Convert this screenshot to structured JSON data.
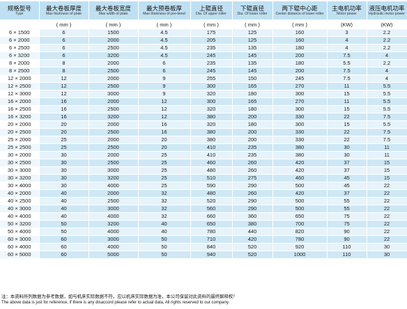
{
  "header": {
    "columns": [
      {
        "zh": "规格型号",
        "en": "Type"
      },
      {
        "zh": "最大卷板厚度",
        "en": "Max thickness of plate"
      },
      {
        "zh": "最大卷板宽度",
        "en": "Max width of plate"
      },
      {
        "zh": "最大预卷板厚",
        "en": "Max thickness of pre-bend"
      },
      {
        "zh": "上辊直径",
        "en": "Dia. Of upper roller"
      },
      {
        "zh": "下辊直径",
        "en": "Dia. Of lower roller"
      },
      {
        "zh": "两下辊中心距",
        "en": "Center distance of lower roller"
      },
      {
        "zh": "主电机功率",
        "en": "Motor power"
      },
      {
        "zh": "液压电机功率",
        "en": "Hydraulic motor power"
      }
    ],
    "units": [
      "",
      "( mm )",
      "( mm )",
      "( mm )",
      "( mm )",
      "( mm )",
      "( mm )",
      "(KW)",
      "(KW)"
    ]
  },
  "rows": [
    [
      "6 × 1500",
      "6",
      "1500",
      "4.5",
      "175",
      "125",
      "160",
      "3",
      "2.2"
    ],
    [
      "6 × 2000",
      "6",
      "2000",
      "4.5",
      "205",
      "125",
      "160",
      "4",
      "2.2"
    ],
    [
      "6 × 2500",
      "6",
      "2500",
      "4.5",
      "235",
      "135",
      "180",
      "4",
      "2.2"
    ],
    [
      "6 × 3200",
      "6",
      "3200",
      "4.5",
      "245",
      "145",
      "200",
      "7.5",
      "4"
    ],
    [
      "8 × 2000",
      "8",
      "2000",
      "6",
      "235",
      "135",
      "180",
      "5.5",
      "2.2"
    ],
    [
      "8 × 2500",
      "8",
      "2500",
      "6",
      "245",
      "145",
      "200",
      "7.5",
      "4"
    ],
    [
      "12 × 2000",
      "12",
      "2000",
      "9",
      "255",
      "150",
      "245",
      "7.5",
      "4"
    ],
    [
      "12 × 2500",
      "12",
      "2500",
      "9",
      "300",
      "165",
      "270",
      "11",
      "5.5"
    ],
    [
      "12 × 3000",
      "12",
      "3000",
      "9",
      "320",
      "180",
      "300",
      "15",
      "5.5"
    ],
    [
      "16 × 2000",
      "16",
      "2000",
      "12",
      "300",
      "165",
      "270",
      "11",
      "5.5"
    ],
    [
      "16 × 2500",
      "16",
      "2500",
      "12",
      "320",
      "180",
      "300",
      "15",
      "5.5"
    ],
    [
      "16 × 3200",
      "16",
      "3200",
      "12",
      "380",
      "200",
      "330",
      "22",
      "7.5"
    ],
    [
      "20 × 2000",
      "20",
      "2000",
      "16",
      "320",
      "180",
      "300",
      "15",
      "5.5"
    ],
    [
      "20 × 2500",
      "20",
      "2500",
      "16",
      "380",
      "200",
      "330",
      "22",
      "7.5"
    ],
    [
      "25 × 2000",
      "25",
      "2000",
      "20",
      "380",
      "200",
      "330",
      "22",
      "7.5"
    ],
    [
      "25 × 2500",
      "25",
      "2500",
      "20",
      "410",
      "235",
      "380",
      "30",
      "11"
    ],
    [
      "30 × 2000",
      "30",
      "2000",
      "25",
      "410",
      "235",
      "380",
      "30",
      "11"
    ],
    [
      "30 × 2500",
      "30",
      "2500",
      "25",
      "460",
      "260",
      "420",
      "37",
      "15"
    ],
    [
      "30 × 3000",
      "30",
      "3000",
      "25",
      "480",
      "260",
      "420",
      "37",
      "15"
    ],
    [
      "30 × 3200",
      "30",
      "3200",
      "25",
      "510",
      "275",
      "460",
      "45",
      "15"
    ],
    [
      "30 × 4000",
      "30",
      "4000",
      "25",
      "590",
      "290",
      "500",
      "45",
      "22"
    ],
    [
      "40 × 2000",
      "40",
      "2000",
      "32",
      "480",
      "260",
      "420",
      "37",
      "22"
    ],
    [
      "40 × 2500",
      "40",
      "2500",
      "32",
      "520",
      "290",
      "500",
      "55",
      "22"
    ],
    [
      "40 × 3000",
      "40",
      "3000",
      "32",
      "560",
      "290",
      "500",
      "55",
      "22"
    ],
    [
      "40 × 4000",
      "40",
      "4000",
      "32",
      "660",
      "360",
      "650",
      "75",
      "22"
    ],
    [
      "50 × 3200",
      "50",
      "3200",
      "40",
      "650",
      "380",
      "700",
      "75",
      "22"
    ],
    [
      "50 × 4000",
      "50",
      "4000",
      "40",
      "780",
      "440",
      "820",
      "90",
      "22"
    ],
    [
      "60 × 3000",
      "60",
      "3000",
      "50",
      "710",
      "420",
      "780",
      "90",
      "22"
    ],
    [
      "60 × 4000",
      "60",
      "4000",
      "50",
      "840",
      "520",
      "920",
      "110",
      "30"
    ],
    [
      "60 × 5000",
      "60",
      "5000",
      "50",
      "940",
      "520",
      "1000",
      "110",
      "30"
    ]
  ],
  "notes": {
    "zh": "注：本资料所列数据为参考数据，如与机床实际数据不符，应以机床实际数据为准，本公司保留对此资料的最终解释权！",
    "en": "The above data is just for reference, if there is any disaccord please refer to actual data, All rights reserved to our company."
  }
}
